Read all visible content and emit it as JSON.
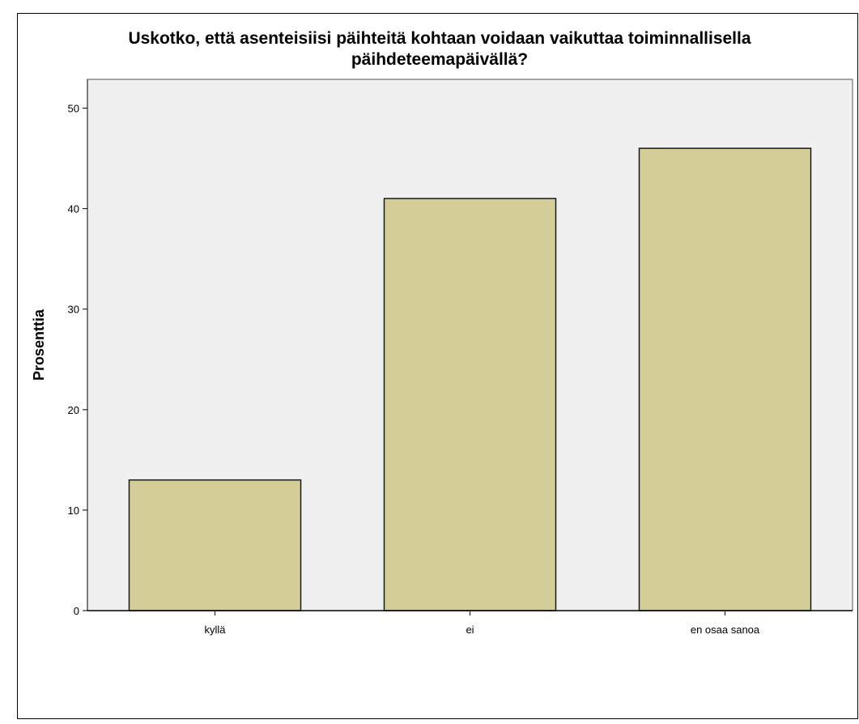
{
  "chart_data": {
    "type": "bar",
    "title_lines": [
      "Uskotko, että asenteisiisi päihteitä kohtaan voidaan vaikuttaa toiminnallisella",
      "päihdeteemapäivällä?"
    ],
    "xlabel": "",
    "ylabel": "Prosenttia",
    "categories": [
      "kyllä",
      "ei",
      "en osaa sanoa"
    ],
    "values": [
      13,
      41,
      46
    ],
    "ylim": [
      0,
      52
    ],
    "yticks": [
      0,
      10,
      20,
      30,
      40,
      50
    ],
    "grid": false,
    "legend": "none",
    "colors": {
      "bar_fill": "#D3CE97",
      "bar_stroke": "#1a1a1a",
      "plot_bg": "#F0F0F0",
      "page_bg": "#FFFFFF",
      "frame": "#000000"
    }
  }
}
